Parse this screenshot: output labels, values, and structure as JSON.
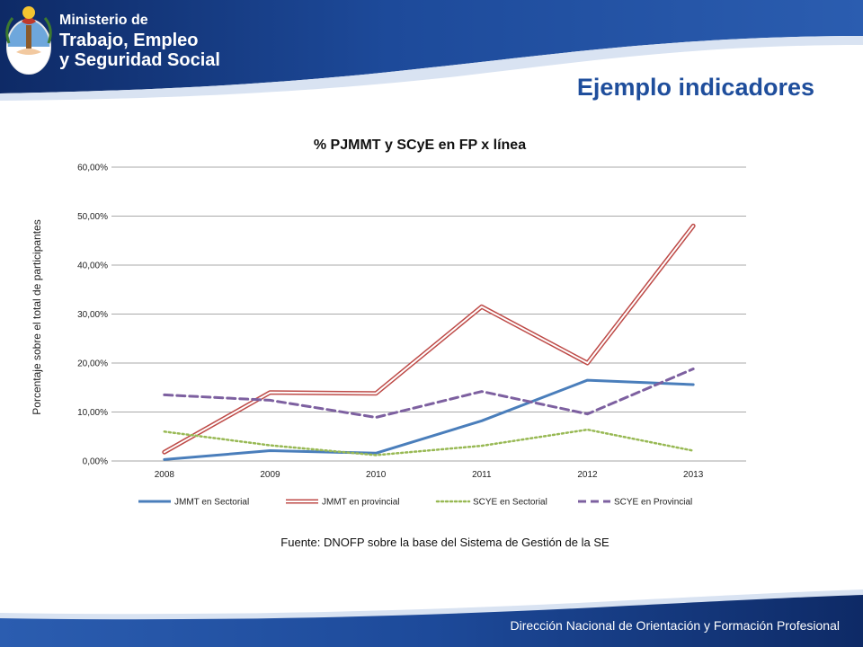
{
  "header": {
    "ministry_line1": "Ministerio de",
    "ministry_line2": "Trabajo, Empleo",
    "ministry_line3": "y Seguridad Social",
    "slide_title": "Ejemplo indicadores"
  },
  "source_note": "Fuente: DNOFP sobre la  base del Sistema de Gestión de la SE",
  "footer_text": "Dirección Nacional de Orientación y Formación Profesional",
  "colors": {
    "header_blue": "#1b3f86",
    "title_blue": "#1f4e9c"
  },
  "chart_data": {
    "type": "line",
    "title": "% PJMMT y SCyE en FP x línea",
    "ylabel": "Porcentaje sobre el total de participantes",
    "xlabel": "",
    "x": [
      "2008",
      "2009",
      "2010",
      "2011",
      "2012",
      "2013"
    ],
    "ylim": [
      0,
      60
    ],
    "yticks": [
      "0,00%",
      "10,00%",
      "20,00%",
      "30,00%",
      "40,00%",
      "50,00%",
      "60,00%"
    ],
    "grid": true,
    "legend_position": "bottom",
    "series": [
      {
        "name": "JMMT en Sectorial",
        "values": [
          0.3,
          2.1,
          1.6,
          8.2,
          16.5,
          15.6
        ],
        "color": "#4a7ebb",
        "style": "solid"
      },
      {
        "name": "JMMT en provincial",
        "values": [
          1.8,
          14.0,
          13.8,
          31.5,
          20.0,
          48.0
        ],
        "color": "#be4b48",
        "style": "double"
      },
      {
        "name": "SCYE en Sectorial",
        "values": [
          6.0,
          3.2,
          1.2,
          3.1,
          6.4,
          2.1
        ],
        "color": "#98b954",
        "style": "dotted"
      },
      {
        "name": "SCYE en Provincial",
        "values": [
          13.5,
          12.4,
          8.9,
          14.2,
          9.6,
          18.8
        ],
        "color": "#7d60a0",
        "style": "dashed"
      }
    ]
  }
}
